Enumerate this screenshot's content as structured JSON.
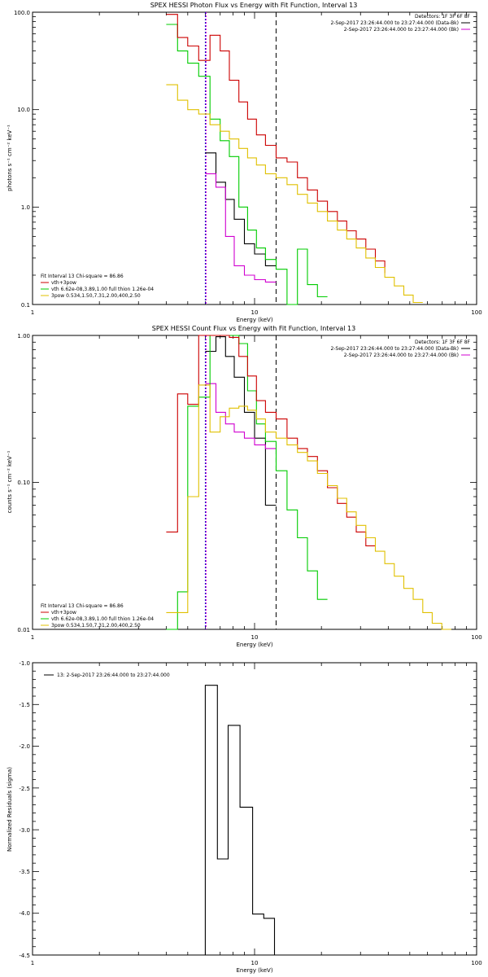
{
  "chart_data": [
    {
      "type": "line",
      "title": "SPEX HESSI Photon Flux vs Energy with Fit Function, Interval 13",
      "xlabel": "Energy (keV)",
      "ylabel": "photons s⁻¹ cm⁻² keV⁻¹",
      "xscale": "log",
      "yscale": "log",
      "xlim": [
        1,
        100
      ],
      "ylim": [
        0.1,
        100
      ],
      "xticks": [
        {
          "v": 1,
          "label": "1"
        },
        {
          "v": 10,
          "label": "10"
        },
        {
          "v": 100,
          "label": "100"
        }
      ],
      "yticks": [
        {
          "v": 0.1,
          "label": "0.1"
        },
        {
          "v": 1,
          "label": "1.0"
        },
        {
          "v": 10,
          "label": "10.0"
        },
        {
          "v": 100,
          "label": "100.0"
        }
      ],
      "vlines": [
        {
          "x": 6,
          "color": "#0000cc",
          "dash": "2,2"
        },
        {
          "x": 6,
          "color": "#d000d0",
          "dash": "2,2"
        },
        {
          "x": 12.5,
          "color": "#000000",
          "dash": "6,4"
        }
      ],
      "header": [
        {
          "text": "Detectors: 1F 3F 6F 8F",
          "color": "#000000",
          "line": false
        },
        {
          "text": "2-Sep-2017 23:26:44.000 to 23:27:44.000 (Data-Bk)",
          "color": "#000000",
          "line": true
        },
        {
          "text": "2-Sep-2017 23:26:44.000 to 23:27:44.000 (Bk)",
          "color": "#d000d0",
          "line": true
        }
      ],
      "legend": [
        {
          "text": "Fit Interval 13    Chi-square = 86.86",
          "color": "#000000",
          "line": false
        },
        {
          "text": "vth+3pow",
          "color": "#cc0000",
          "line": true
        },
        {
          "text": "vth 6.62e-08,3.89,1.00  full thion 1.26e-04",
          "color": "#00cc00",
          "line": true
        },
        {
          "text": "3pow 0.534,1.50,7.31,2.00,400,2.50",
          "color": "#e0c000",
          "line": true
        }
      ],
      "series": [
        {
          "color": "#000000",
          "edges": [
            6.0,
            6.7,
            7.4,
            8.1,
            9.0,
            10.0,
            11.2,
            12.5
          ],
          "values": [
            3.6,
            1.8,
            1.2,
            0.75,
            0.42,
            0.33,
            0.25
          ]
        },
        {
          "color": "#d000d0",
          "edges": [
            6.0,
            6.7,
            7.4,
            8.1,
            9.0,
            10.0,
            11.2,
            12.5
          ],
          "values": [
            2.2,
            1.6,
            0.5,
            0.25,
            0.2,
            0.18,
            0.17
          ]
        },
        {
          "color": "#00cc00",
          "edges": [
            4.0,
            4.5,
            5.0,
            5.6,
            6.3,
            7.0,
            7.7,
            8.5,
            9.3,
            10.2,
            11.2,
            12.5,
            14.0,
            15.6,
            17.3,
            19.2,
            21.3
          ],
          "values": [
            75,
            40,
            30,
            22,
            8,
            4.8,
            3.3,
            1.0,
            0.58,
            0.38,
            0.29,
            0.23,
            0.1,
            0.37,
            0.16,
            0.12
          ]
        },
        {
          "color": "#cc0000",
          "edges": [
            4.0,
            4.5,
            5.0,
            5.6,
            6.3,
            7.0,
            7.7,
            8.5,
            9.3,
            10.2,
            11.2,
            12.5,
            14.0,
            15.6,
            17.3,
            19.2,
            21.3,
            23.6,
            26.0,
            28.7,
            31.7,
            35.0,
            38.6
          ],
          "values": [
            95,
            55,
            45,
            32,
            58,
            40,
            20,
            12,
            8,
            5.5,
            4.3,
            3.2,
            2.9,
            2.0,
            1.5,
            1.15,
            0.9,
            0.72,
            0.57,
            0.47,
            0.37,
            0.28,
            0.21
          ]
        },
        {
          "color": "#e0c000",
          "edges": [
            4.0,
            4.5,
            5.0,
            5.6,
            6.3,
            7.0,
            7.7,
            8.5,
            9.3,
            10.2,
            11.2,
            12.5,
            14.0,
            15.6,
            17.3,
            19.2,
            21.3,
            23.6,
            26.0,
            28.7,
            31.7,
            35.0,
            38.6,
            42.6,
            47.0,
            51.8,
            57.2
          ],
          "values": [
            18,
            12.5,
            10,
            9,
            7,
            6,
            5,
            4,
            3.2,
            2.7,
            2.2,
            2.0,
            1.7,
            1.35,
            1.1,
            0.9,
            0.72,
            0.58,
            0.47,
            0.38,
            0.3,
            0.24,
            0.19,
            0.155,
            0.125,
            0.105
          ]
        }
      ]
    },
    {
      "type": "line",
      "title": "SPEX HESSI Count Flux vs Energy with Fit Function, Interval 13",
      "xlabel": "Energy (keV)",
      "ylabel": "counts s⁻¹ cm⁻² keV⁻¹",
      "xscale": "log",
      "yscale": "log",
      "xlim": [
        1,
        100
      ],
      "ylim": [
        0.01,
        1
      ],
      "xticks": [
        {
          "v": 1,
          "label": "1"
        },
        {
          "v": 10,
          "label": "10"
        },
        {
          "v": 100,
          "label": "100"
        }
      ],
      "yticks": [
        {
          "v": 0.01,
          "label": "0.01"
        },
        {
          "v": 0.1,
          "label": "0.10"
        },
        {
          "v": 1,
          "label": "1.00"
        }
      ],
      "vlines": [
        {
          "x": 6,
          "color": "#0000cc",
          "dash": "2,2"
        },
        {
          "x": 6,
          "color": "#d000d0",
          "dash": "2,2"
        },
        {
          "x": 12.5,
          "color": "#000000",
          "dash": "6,4"
        }
      ],
      "header": [
        {
          "text": "Detectors: 1F 3F 6F 8F",
          "color": "#000000",
          "line": false
        },
        {
          "text": "2-Sep-2017 23:26:44.000 to 23:27:44.000 (Data-Bk)",
          "color": "#000000",
          "line": true
        },
        {
          "text": "2-Sep-2017 23:26:44.000 to 23:27:44.000 (Bk)",
          "color": "#d000d0",
          "line": true
        }
      ],
      "legend": [
        {
          "text": "Fit Interval 13    Chi-square = 86.86",
          "color": "#000000",
          "line": false
        },
        {
          "text": "vth+3pow",
          "color": "#cc0000",
          "line": true
        },
        {
          "text": "vth 6.62e-08,3.89,1.00  full thion 1.26e-04",
          "color": "#00cc00",
          "line": true
        },
        {
          "text": "3pow 0.534,1.50,7.31,2.00,400,2.50",
          "color": "#e0c000",
          "line": true
        }
      ],
      "series": [
        {
          "color": "#000000",
          "edges": [
            6.0,
            6.7,
            7.4,
            8.1,
            9.0,
            10.0,
            11.2,
            12.5
          ],
          "values": [
            0.78,
            0.98,
            0.72,
            0.52,
            0.3,
            0.2,
            0.07
          ]
        },
        {
          "color": "#d000d0",
          "edges": [
            6.0,
            6.7,
            7.4,
            8.1,
            9.0,
            10.0,
            11.2,
            12.5
          ],
          "values": [
            0.47,
            0.3,
            0.25,
            0.22,
            0.2,
            0.18,
            0.17
          ]
        },
        {
          "color": "#00cc00",
          "edges": [
            4.0,
            4.5,
            5.0,
            5.6,
            6.3,
            7.0,
            7.7,
            8.5,
            9.3,
            10.2,
            11.2,
            12.5,
            14.0,
            15.6,
            17.3,
            19.2,
            21.3
          ],
          "values": [
            0.01,
            0.018,
            0.33,
            0.38,
            1.0,
            1.0,
            1.0,
            0.88,
            0.42,
            0.25,
            0.19,
            0.12,
            0.065,
            0.042,
            0.025,
            0.016
          ]
        },
        {
          "color": "#cc0000",
          "edges": [
            4.0,
            4.5,
            5.0,
            5.6,
            6.3,
            7.0,
            7.7,
            8.5,
            9.3,
            10.2,
            11.2,
            12.5,
            14.0,
            15.6,
            17.3,
            19.2,
            21.3,
            23.6,
            26.0,
            28.7,
            31.7,
            35.0
          ],
          "values": [
            0.046,
            0.4,
            0.34,
            1.0,
            1.0,
            1.0,
            0.97,
            0.72,
            0.53,
            0.36,
            0.3,
            0.27,
            0.2,
            0.17,
            0.15,
            0.12,
            0.092,
            0.072,
            0.058,
            0.046,
            0.037
          ]
        },
        {
          "color": "#e0c000",
          "edges": [
            4.0,
            4.5,
            5.0,
            5.6,
            6.3,
            7.0,
            7.7,
            8.5,
            9.3,
            10.2,
            11.2,
            12.5,
            14.0,
            15.6,
            17.3,
            19.2,
            21.3,
            23.6,
            26.0,
            28.7,
            31.7,
            35.0,
            38.6,
            42.6,
            47.0,
            51.8,
            57.2,
            63.1,
            69.7,
            76.9
          ],
          "values": [
            0.013,
            0.013,
            0.08,
            0.46,
            0.22,
            0.28,
            0.32,
            0.33,
            0.31,
            0.27,
            0.22,
            0.2,
            0.18,
            0.16,
            0.14,
            0.115,
            0.095,
            0.078,
            0.063,
            0.051,
            0.042,
            0.034,
            0.028,
            0.023,
            0.019,
            0.016,
            0.013,
            0.011,
            0.01
          ]
        }
      ]
    },
    {
      "type": "line",
      "title": "",
      "xlabel": "Energy (keV)",
      "ylabel": "Normalized Residuals (sigma)",
      "xscale": "log",
      "yscale": "linear",
      "xlim": [
        1,
        100
      ],
      "ylim": [
        -4.5,
        -1.0
      ],
      "xticks": [
        {
          "v": 1,
          "label": "1"
        },
        {
          "v": 10,
          "label": "10"
        },
        {
          "v": 100,
          "label": "100"
        }
      ],
      "yticks": [
        {
          "v": -1.0,
          "label": "-1.0"
        },
        {
          "v": -1.5,
          "label": "-1.5"
        },
        {
          "v": -2.0,
          "label": "-2.0"
        },
        {
          "v": -2.5,
          "label": "-2.5"
        },
        {
          "v": -3.0,
          "label": "-3.0"
        },
        {
          "v": -3.5,
          "label": "-3.5"
        },
        {
          "v": -4.0,
          "label": "-4.0"
        },
        {
          "v": -4.5,
          "label": "-4.5"
        }
      ],
      "vlines": [],
      "header": [],
      "legend": [],
      "inset_legend": {
        "text": "13:  2-Sep-2017 23:26:44.000 to 23:27:44.000",
        "color": "#000000"
      },
      "series": [
        {
          "color": "#000000",
          "edges": [
            6.0,
            6.8,
            7.6,
            8.6,
            9.8,
            11.0,
            12.3
          ],
          "values": [
            -1.27,
            -3.35,
            -1.75,
            -2.73,
            -4.01,
            -4.06
          ],
          "drop_to_floor": true
        }
      ]
    }
  ]
}
